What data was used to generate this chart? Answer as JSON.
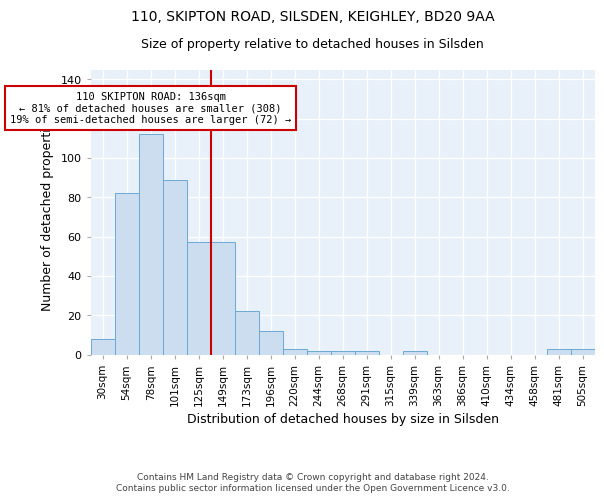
{
  "title1": "110, SKIPTON ROAD, SILSDEN, KEIGHLEY, BD20 9AA",
  "title2": "Size of property relative to detached houses in Silsden",
  "xlabel": "Distribution of detached houses by size in Silsden",
  "ylabel": "Number of detached properties",
  "categories": [
    "30sqm",
    "54sqm",
    "78sqm",
    "101sqm",
    "125sqm",
    "149sqm",
    "173sqm",
    "196sqm",
    "220sqm",
    "244sqm",
    "268sqm",
    "291sqm",
    "315sqm",
    "339sqm",
    "363sqm",
    "386sqm",
    "410sqm",
    "434sqm",
    "458sqm",
    "481sqm",
    "505sqm"
  ],
  "values": [
    8,
    82,
    112,
    89,
    57,
    57,
    22,
    12,
    3,
    2,
    2,
    2,
    0,
    2,
    0,
    0,
    0,
    0,
    0,
    3,
    3
  ],
  "bar_color": "#ccddf0",
  "bar_edge_color": "#6aaad4",
  "vline_x_index": 4.5,
  "vline_color": "#cc0000",
  "annotation_text": "110 SKIPTON ROAD: 136sqm\n← 81% of detached houses are smaller (308)\n19% of semi-detached houses are larger (72) →",
  "annotation_box_color": "#ffffff",
  "annotation_box_edge": "#cc0000",
  "ylim": [
    0,
    145
  ],
  "yticks": [
    0,
    20,
    40,
    60,
    80,
    100,
    120,
    140
  ],
  "footer": "Contains HM Land Registry data © Crown copyright and database right 2024.\nContains public sector information licensed under the Open Government Licence v3.0.",
  "bg_color": "#e8f0fa",
  "grid_color": "#ffffff",
  "title1_fontsize": 10,
  "title2_fontsize": 9
}
